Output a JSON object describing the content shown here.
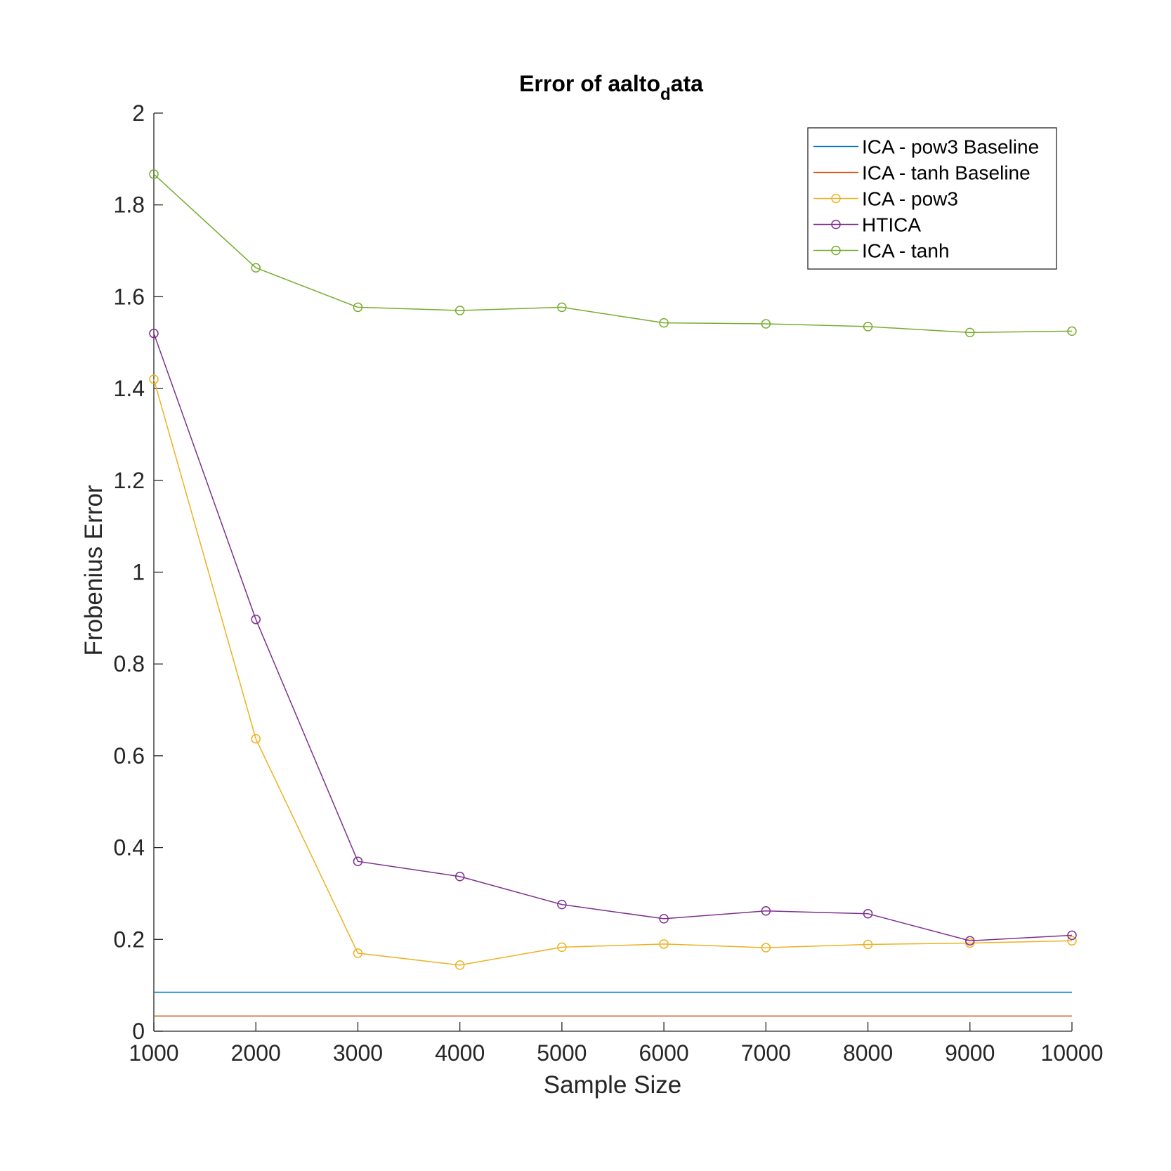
{
  "chart_data": {
    "type": "line",
    "title": "Error of aalto",
    "title_subscript": "d",
    "title_suffix": "ata",
    "xlabel": "Sample Size",
    "ylabel": "Frobenius Error",
    "x": [
      1000,
      2000,
      3000,
      4000,
      5000,
      6000,
      7000,
      8000,
      9000,
      10000
    ],
    "xlim": [
      1000,
      10000
    ],
    "ylim": [
      0,
      2
    ],
    "xticks": [
      1000,
      2000,
      3000,
      4000,
      5000,
      6000,
      7000,
      8000,
      9000,
      10000
    ],
    "yticks": [
      0,
      0.2,
      0.4,
      0.6,
      0.8,
      1,
      1.2,
      1.4,
      1.6,
      1.8,
      2
    ],
    "xtick_labels": [
      "1000",
      "2000",
      "3000",
      "4000",
      "5000",
      "6000",
      "7000",
      "8000",
      "9000",
      "10000"
    ],
    "ytick_labels": [
      "0",
      "0.2",
      "0.4",
      "0.6",
      "0.8",
      "1",
      "1.2",
      "1.4",
      "1.6",
      "1.8",
      "2"
    ],
    "grid": false,
    "legend_position": "top-right",
    "series": [
      {
        "name": "ICA - pow3 Baseline",
        "color": "#0072BD",
        "marker": "none",
        "values": [
          0.085,
          0.085,
          0.085,
          0.085,
          0.085,
          0.085,
          0.085,
          0.085,
          0.085,
          0.085
        ]
      },
      {
        "name": "ICA - tanh Baseline",
        "color": "#D95319",
        "marker": "none",
        "values": [
          0.033,
          0.033,
          0.033,
          0.033,
          0.033,
          0.033,
          0.033,
          0.033,
          0.033,
          0.033
        ]
      },
      {
        "name": "ICA - pow3",
        "color": "#EDB120",
        "marker": "circle",
        "values": [
          1.42,
          0.637,
          0.17,
          0.144,
          0.183,
          0.19,
          0.182,
          0.189,
          0.192,
          0.197
        ]
      },
      {
        "name": "HTICA",
        "color": "#7E2F8E",
        "marker": "circle",
        "values": [
          1.52,
          0.897,
          0.37,
          0.337,
          0.276,
          0.245,
          0.262,
          0.256,
          0.197,
          0.209
        ]
      },
      {
        "name": "ICA - tanh",
        "color": "#77AC30",
        "marker": "circle",
        "values": [
          1.867,
          1.663,
          1.577,
          1.57,
          1.577,
          1.543,
          1.541,
          1.535,
          1.522,
          1.525
        ]
      }
    ]
  }
}
